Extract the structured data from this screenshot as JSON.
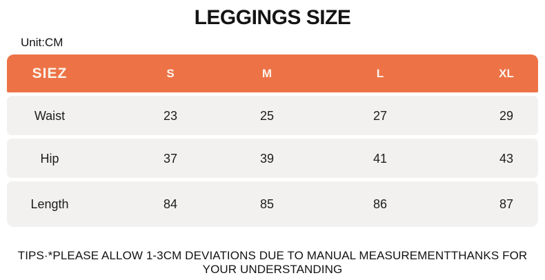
{
  "title": "LEGGINGS SIZE",
  "unit_label": "Unit:CM",
  "table": {
    "corner_label": "SIEZ",
    "size_columns": [
      "S",
      "M",
      "L",
      "XL"
    ],
    "rows": [
      {
        "label": "Waist",
        "values": [
          "23",
          "25",
          "27",
          "29"
        ]
      },
      {
        "label": "Hip",
        "values": [
          "37",
          "39",
          "41",
          "43"
        ]
      },
      {
        "label": "Length",
        "values": [
          "84",
          "85",
          "86",
          "87"
        ]
      }
    ]
  },
  "tips": "TIPS·*PLEASE ALLOW 1-3CM DEVIATIONS DUE TO MANUAL MEASUREMENTTHANKS FOR YOUR UNDERSTANDING",
  "colors": {
    "accent_orange": "#ED7347",
    "row_background": "#F2F1F0",
    "header_text": "#FBF4EC",
    "body_text": "#1c1c1c"
  },
  "chart_data": {
    "type": "table",
    "title": "LEGGINGS SIZE",
    "unit": "CM",
    "columns": [
      "SIEZ",
      "S",
      "M",
      "L",
      "XL"
    ],
    "rows": [
      [
        "Waist",
        23,
        25,
        27,
        29
      ],
      [
        "Hip",
        37,
        39,
        41,
        43
      ],
      [
        "Length",
        84,
        85,
        86,
        87
      ]
    ],
    "note": "TIPS·*PLEASE ALLOW 1-3CM DEVIATIONS DUE TO MANUAL MEASUREMENTTHANKS FOR YOUR UNDERSTANDING"
  }
}
